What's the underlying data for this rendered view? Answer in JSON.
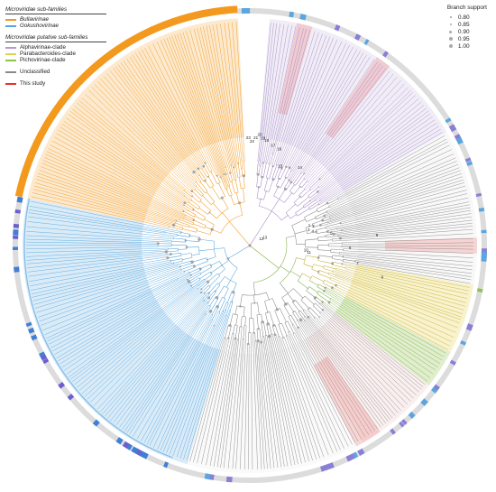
{
  "legend": {
    "families_header": "Microviridae sub-families",
    "families": [
      {
        "label": "Bullavirinae",
        "color": "#f39a1e"
      },
      {
        "label": "Gokushovirinae",
        "color": "#56a6de"
      }
    ],
    "putative_header": "Microviridae putative sub-families",
    "putative": [
      {
        "label": "Alphavirinae-clade",
        "color": "#b49ad0"
      },
      {
        "label": "Parabacteroides-clade",
        "color": "#e6d24a"
      },
      {
        "label": "Pichovirinae-clade",
        "color": "#8fc24e"
      }
    ],
    "unclassified": {
      "label": "Unclassified",
      "color": "#8a8a8a"
    },
    "this_study": {
      "label": "This study",
      "color": "#e8322e"
    }
  },
  "branch_support": {
    "title": "Branch support",
    "levels": [
      "0.80",
      "0.85",
      "0.90",
      "0.95",
      "1.00"
    ]
  },
  "node_labels": [
    "1",
    "2",
    "3",
    "4",
    "5",
    "6",
    "7",
    "8",
    "9",
    "10",
    "11",
    "12",
    "13",
    "14",
    "15",
    "16",
    "17",
    "18",
    "19",
    "20",
    "21",
    "22",
    "23"
  ]
}
